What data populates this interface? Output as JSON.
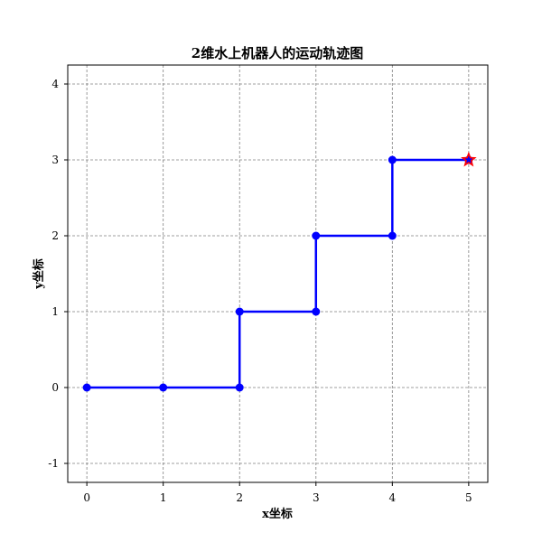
{
  "chart_data": {
    "type": "line",
    "title": "2维水上机器人的运动轨迹图",
    "xlabel": "x坐标",
    "ylabel": "y坐标",
    "xlim": [
      -0.25,
      5.25
    ],
    "ylim": [
      -1.25,
      4.25
    ],
    "xticks": [
      "0",
      "1",
      "2",
      "3",
      "4",
      "5"
    ],
    "yticks": [
      "-1",
      "0",
      "1",
      "2",
      "3",
      "4"
    ],
    "grid": true,
    "series": [
      {
        "x": [
          0,
          1,
          2,
          2,
          3,
          3,
          4,
          4,
          5
        ],
        "y": [
          0,
          0,
          0,
          1,
          1,
          2,
          2,
          3,
          3
        ],
        "color": "#0000ff",
        "marker": "circle"
      }
    ],
    "end_marker": {
      "x": 5,
      "y": 3,
      "shape": "star",
      "color": "#ff0000"
    }
  }
}
